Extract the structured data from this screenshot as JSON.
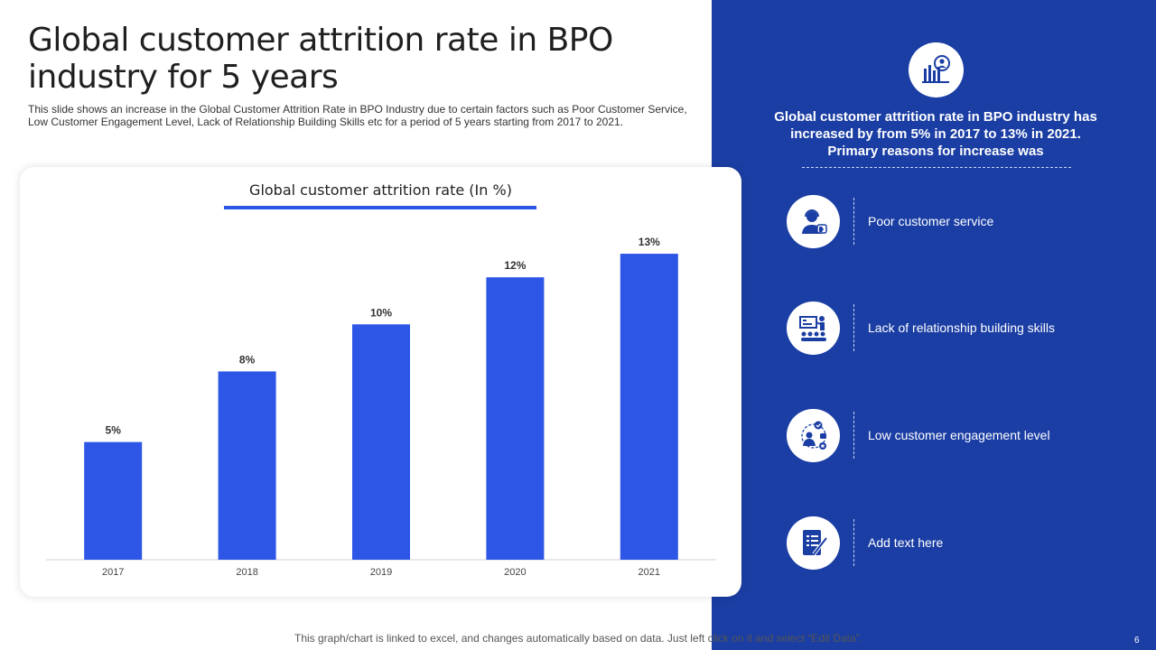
{
  "slide": {
    "title": "Global customer attrition rate in BPO industry for 5 years",
    "subtitle": "This slide shows an increase in the Global Customer Attrition Rate in BPO Industry due to certain factors such as Poor Customer Service, Low Customer Engagement Level, Lack of Relationship Building Skills etc for a period of 5 years starting from 2017 to 2021.",
    "footnote": "This graph/chart is linked to excel, and changes automatically based on data. Just left click on it and select “Edit Data”.",
    "page_number": "6"
  },
  "chart_data": {
    "type": "bar",
    "title": "Global customer attrition rate (In %)",
    "categories": [
      "2017",
      "2018",
      "2019",
      "2020",
      "2021"
    ],
    "values": [
      5,
      8,
      10,
      12,
      13
    ],
    "value_labels": [
      "5%",
      "8%",
      "10%",
      "12%",
      "13%"
    ],
    "xlabel": "",
    "ylabel": "",
    "ylim": [
      0,
      14
    ],
    "grid": false,
    "bar_color": "#2d55e6"
  },
  "panel": {
    "background": "#1b3ea4",
    "top_icon": "analytics-person-icon",
    "summary": "Global customer attrition rate in BPO industry has increased by from 5% in 2017 to 13% in 2021. Primary reasons for increase was",
    "reasons": [
      {
        "label": "Poor customer service",
        "icon": "support-agent-dislike-icon"
      },
      {
        "label": "Lack of relationship building skills",
        "icon": "presentation-audience-icon"
      },
      {
        "label": "Low customer engagement level",
        "icon": "engagement-network-icon"
      },
      {
        "label": "Add text here",
        "icon": "document-pen-icon"
      }
    ]
  }
}
